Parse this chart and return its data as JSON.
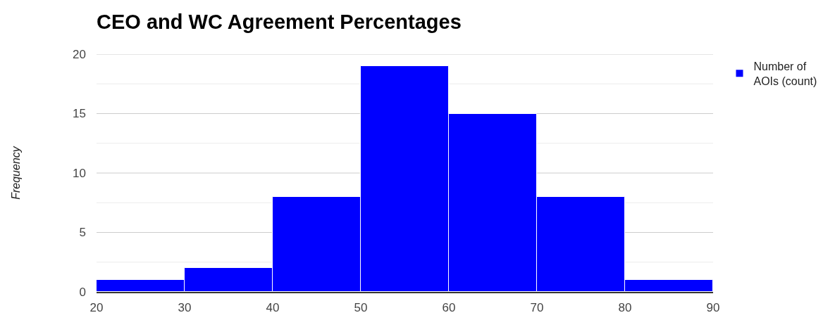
{
  "chart_data": {
    "type": "histogram",
    "title": "CEO and WC Agreement Percentages",
    "ylabel": "Frequency",
    "bins": [
      20,
      30,
      40,
      50,
      60,
      70,
      80,
      90
    ],
    "series": [
      {
        "name": "Number of AOIs (count)",
        "color": "#0000ff",
        "values": [
          1,
          2,
          8,
          19,
          15,
          8,
          1
        ]
      }
    ],
    "xlim": [
      20,
      90
    ],
    "xticks": [
      20,
      30,
      40,
      50,
      60,
      70,
      80,
      90
    ],
    "ylim": [
      0,
      20
    ],
    "yticks": [
      0,
      {
        "value": 2.5,
        "label": null
      },
      5,
      {
        "value": 7.5,
        "label": null
      },
      10,
      {
        "value": 12.5,
        "label": null
      },
      15,
      {
        "value": 17.5,
        "label": null
      },
      20
    ],
    "grid": "y",
    "legend": "top right"
  }
}
